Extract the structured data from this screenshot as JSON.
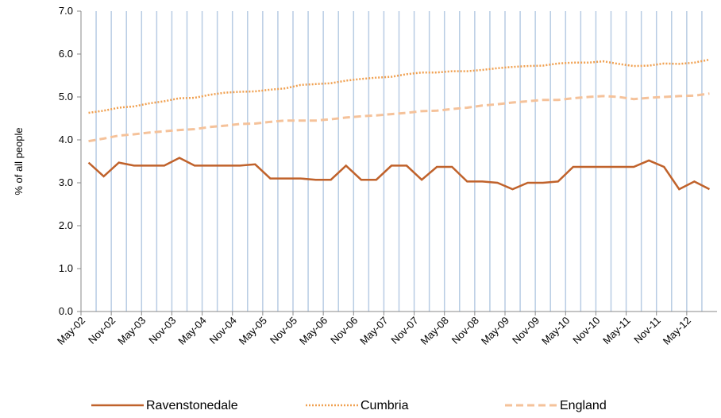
{
  "chart_data": {
    "type": "line",
    "y_label": "% of all people",
    "categories": [
      "May-02",
      null,
      "Nov-02",
      null,
      "May-03",
      null,
      "Nov-03",
      null,
      "May-04",
      null,
      "Nov-04",
      null,
      "May-05",
      null,
      "Nov-05",
      null,
      "May-06",
      null,
      "Nov-06",
      null,
      "May-07",
      null,
      "Nov-07",
      null,
      "May-08",
      null,
      "Nov-08",
      null,
      "May-09",
      null,
      "Nov-09",
      null,
      "May-10",
      null,
      "Nov-10",
      null,
      "May-11",
      null,
      "Nov-11",
      null,
      "May-12",
      null
    ],
    "series": [
      {
        "name": "Ravenstonedale",
        "color": "#c0622b",
        "dash": "solid",
        "values": [
          3.47,
          3.15,
          3.47,
          3.4,
          3.4,
          3.4,
          3.58,
          3.4,
          3.4,
          3.4,
          3.4,
          3.43,
          3.1,
          3.1,
          3.1,
          3.07,
          3.07,
          3.4,
          3.07,
          3.07,
          3.4,
          3.4,
          3.07,
          3.37,
          3.37,
          3.03,
          3.03,
          3.0,
          2.85,
          3.0,
          3.0,
          3.03,
          3.37,
          3.37,
          3.37,
          3.37,
          3.37,
          3.52,
          3.37,
          2.85,
          3.03,
          2.85
        ]
      },
      {
        "name": "Cumbria",
        "color": "#f0a050",
        "dash": "dotted",
        "values": [
          4.63,
          4.68,
          4.75,
          4.78,
          4.85,
          4.9,
          4.97,
          4.98,
          5.05,
          5.1,
          5.12,
          5.13,
          5.17,
          5.2,
          5.28,
          5.3,
          5.32,
          5.38,
          5.42,
          5.45,
          5.47,
          5.53,
          5.57,
          5.57,
          5.6,
          5.6,
          5.63,
          5.67,
          5.7,
          5.72,
          5.73,
          5.78,
          5.8,
          5.8,
          5.83,
          5.77,
          5.72,
          5.73,
          5.78,
          5.77,
          5.8,
          5.87
        ]
      },
      {
        "name": "England",
        "color": "#f5c29a",
        "dash": "dashed",
        "values": [
          3.97,
          4.03,
          4.1,
          4.13,
          4.17,
          4.2,
          4.23,
          4.25,
          4.3,
          4.33,
          4.37,
          4.38,
          4.42,
          4.45,
          4.45,
          4.45,
          4.48,
          4.52,
          4.55,
          4.57,
          4.6,
          4.63,
          4.67,
          4.68,
          4.72,
          4.75,
          4.8,
          4.83,
          4.87,
          4.9,
          4.93,
          4.93,
          4.97,
          5.0,
          5.02,
          5.0,
          4.95,
          4.98,
          5.0,
          5.02,
          5.03,
          5.08
        ]
      }
    ],
    "ylim": [
      0,
      7
    ],
    "yticks": [
      {
        "value": 0,
        "label": "0.0"
      },
      {
        "value": 1,
        "label": "1.0"
      },
      {
        "value": 2,
        "label": "2.0"
      },
      {
        "value": 3,
        "label": "3.0"
      },
      {
        "value": 4,
        "label": "4.0"
      },
      {
        "value": 5,
        "label": "5.0"
      },
      {
        "value": 6,
        "label": "6.0"
      },
      {
        "value": 7,
        "label": "7.0"
      }
    ],
    "grid_color": "#b8cce4"
  }
}
